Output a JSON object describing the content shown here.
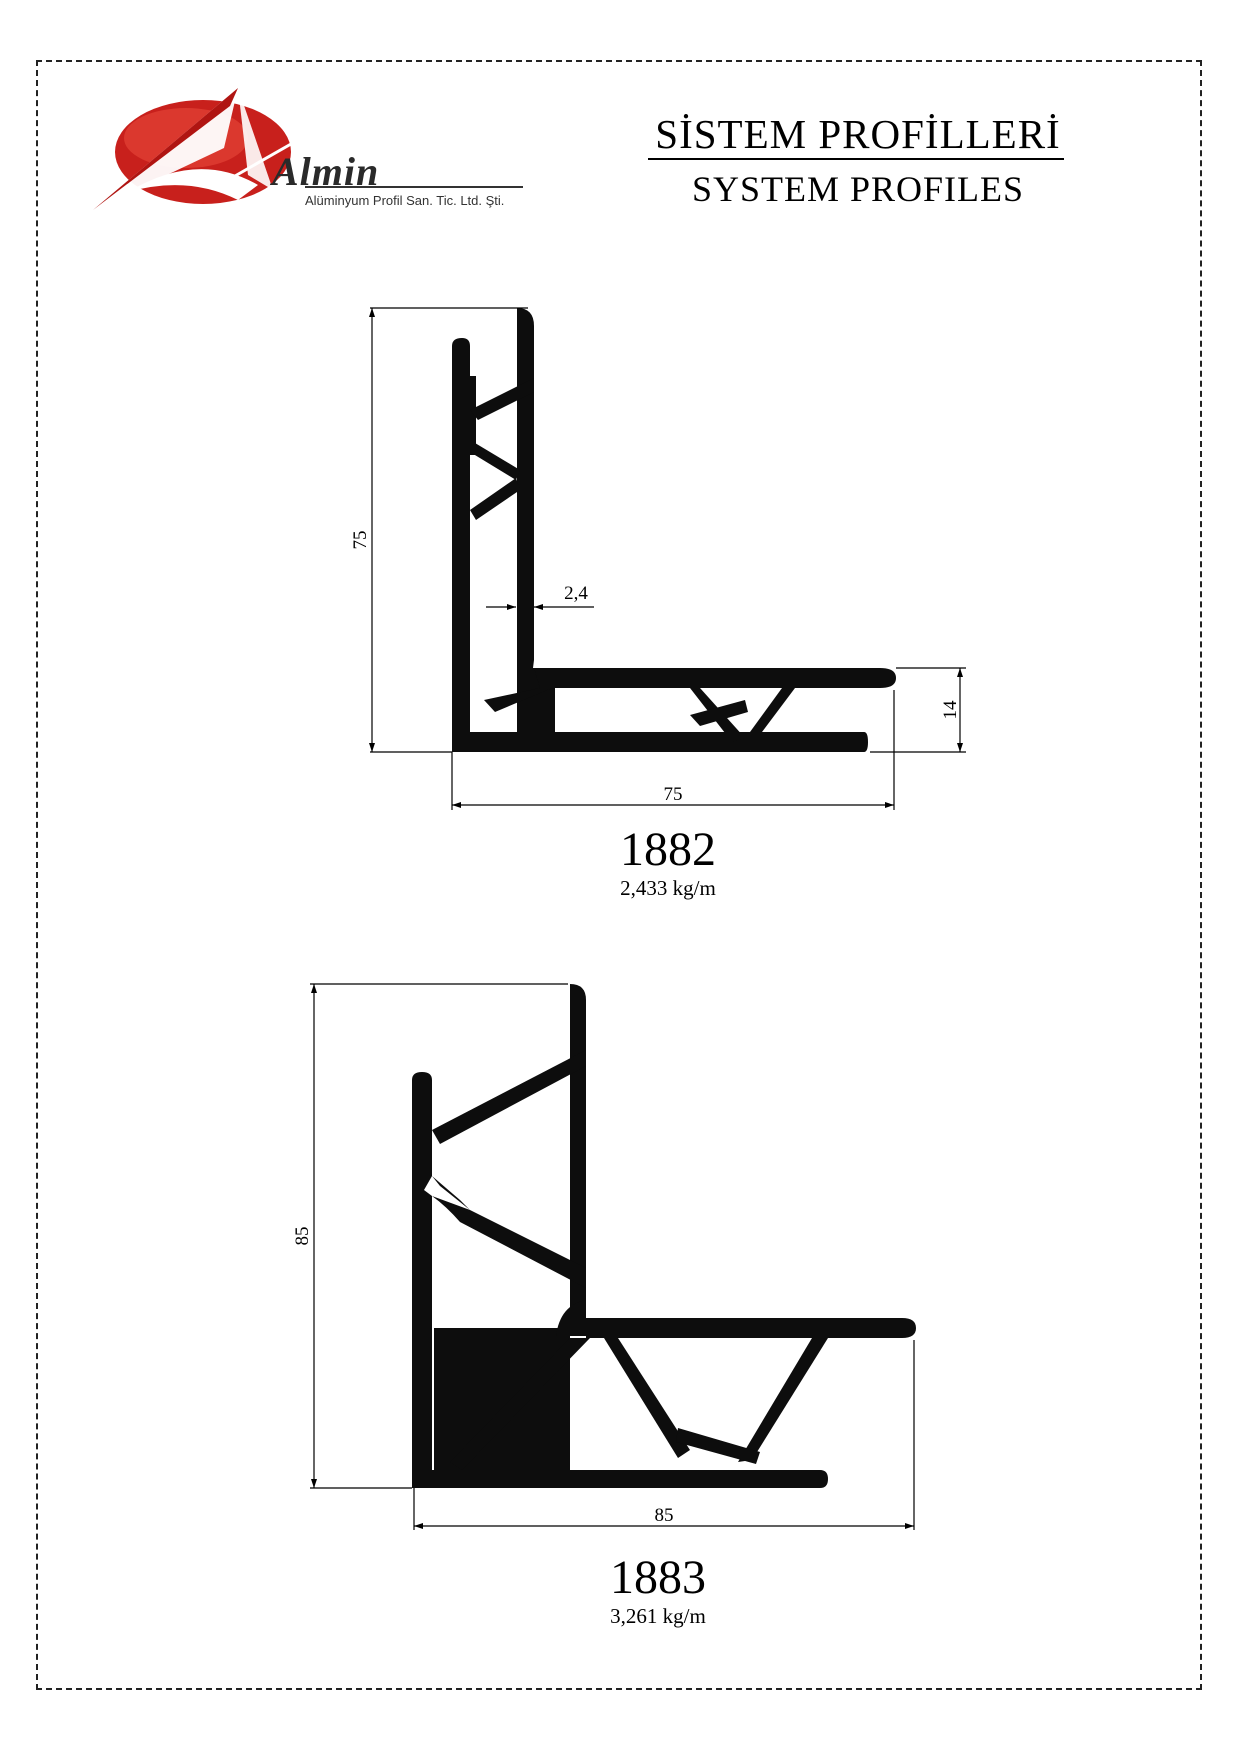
{
  "header": {
    "brand": "Almin",
    "subtitle": "Alüminyum Profil San. Tic. Ltd. Şti.",
    "title_tr": "SİSTEM PROFİLLERİ",
    "title_en": "SYSTEM PROFILES"
  },
  "profiles": [
    {
      "code": "1882",
      "weight": "2,433 kg/m",
      "dims": {
        "height": "75",
        "width": "75",
        "thickness": "2,4",
        "flange": "14"
      }
    },
    {
      "code": "1883",
      "weight": "3,261 kg/m",
      "dims": {
        "height": "85",
        "width": "85"
      }
    }
  ],
  "colors": {
    "logo_red": "#c8201c",
    "profile": "#0d0d0d"
  }
}
